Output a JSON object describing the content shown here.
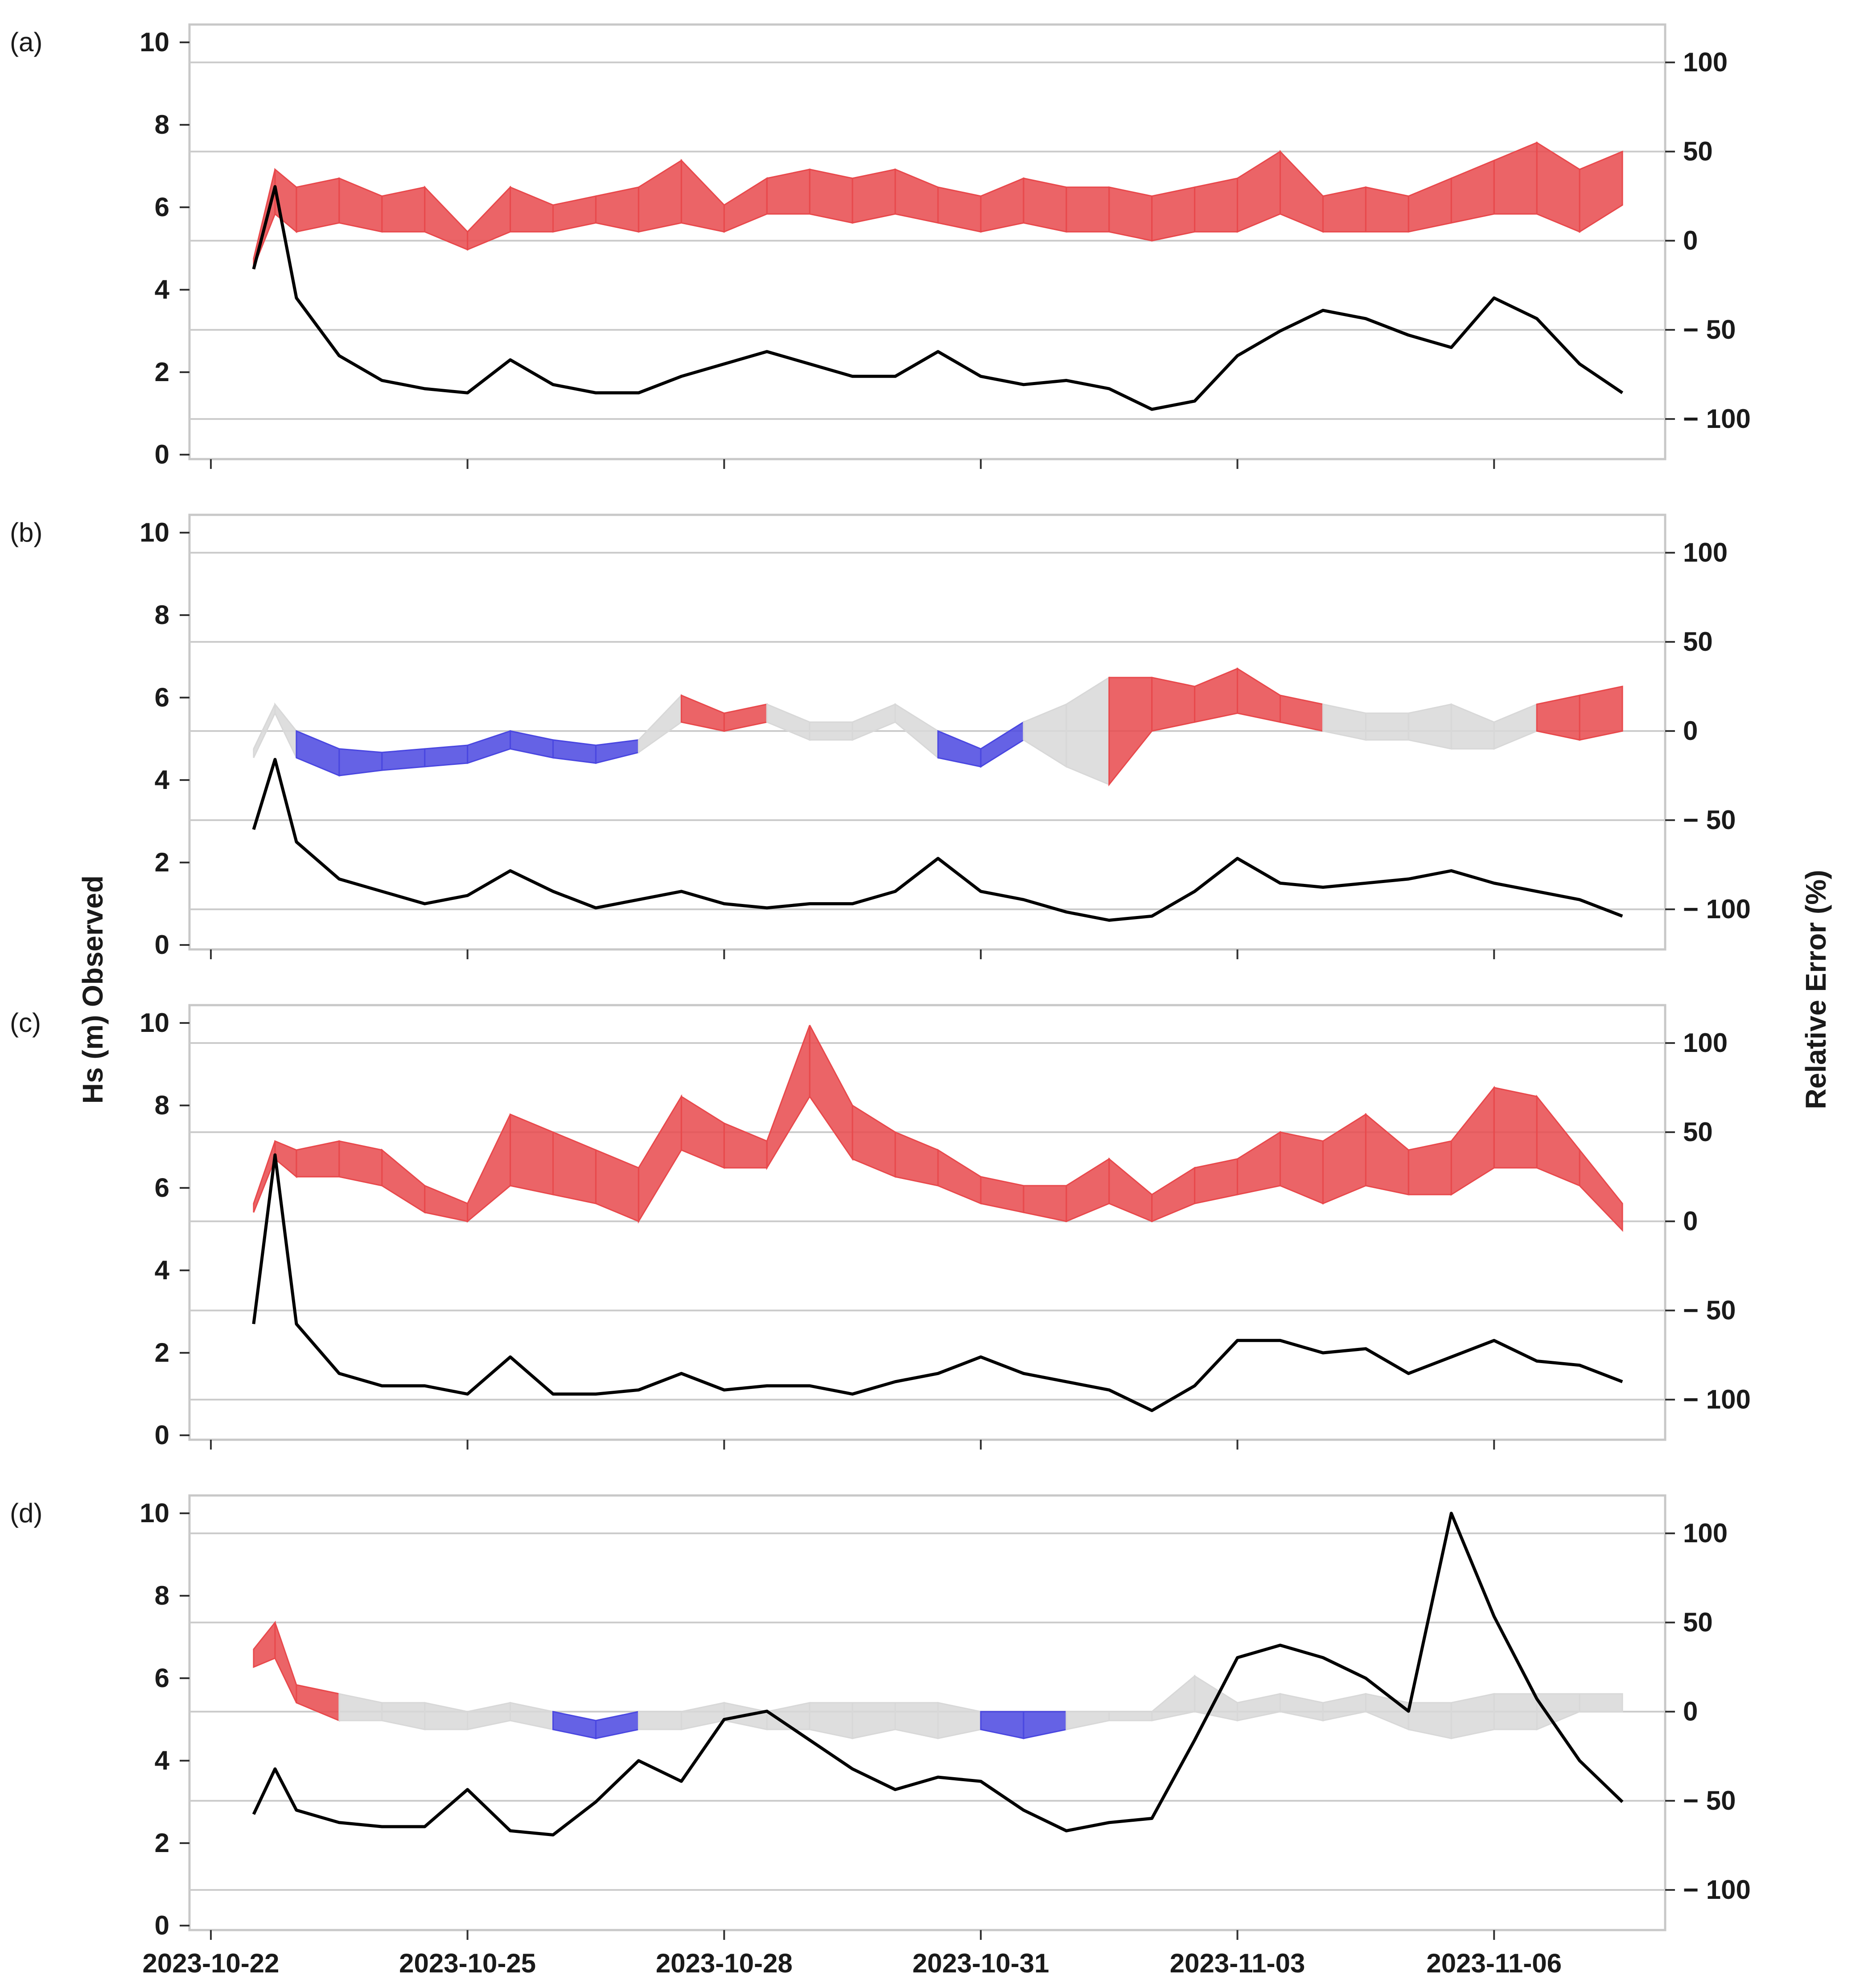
{
  "colors": {
    "observed_line": "#000000",
    "error_positive": "#e8494c",
    "error_negative": "#4a47e0",
    "error_neutral": "#d8d8d8",
    "gridline": "#cccccc",
    "frame": "#c8c8c8"
  },
  "axes": {
    "left_title": "Hs (m) Observed",
    "right_title": "Relative Error (%)",
    "left_ticks": [
      "0",
      "2",
      "4",
      "6",
      "8",
      "10"
    ],
    "right_ticks": [
      "100",
      "50",
      "0",
      "− 50",
      "− 100"
    ],
    "x_ticks": [
      "2023-10-22",
      "2023-10-25",
      "2023-10-28",
      "2023-10-31",
      "2023-11-03",
      "2023-11-06"
    ]
  },
  "chart_data": [
    {
      "type": "line",
      "panel": "(a)",
      "xlabel": "",
      "ylabel": "Hs (m) Observed",
      "y2label": "Relative Error (%)",
      "x": [
        "2023-10-22 12:00",
        "2023-10-22 18:00",
        "2023-10-23 00:00",
        "2023-10-23 12:00",
        "2023-10-24 00:00",
        "2023-10-24 12:00",
        "2023-10-25 00:00",
        "2023-10-25 12:00",
        "2023-10-26 00:00",
        "2023-10-26 12:00",
        "2023-10-27 00:00",
        "2023-10-27 12:00",
        "2023-10-28 00:00",
        "2023-10-28 12:00",
        "2023-10-29 00:00",
        "2023-10-29 12:00",
        "2023-10-30 00:00",
        "2023-10-30 12:00",
        "2023-10-31 00:00",
        "2023-10-31 12:00",
        "2023-11-01 00:00",
        "2023-11-01 12:00",
        "2023-11-02 00:00",
        "2023-11-02 12:00",
        "2023-11-03 00:00",
        "2023-11-03 12:00",
        "2023-11-04 00:00",
        "2023-11-04 12:00",
        "2023-11-05 00:00",
        "2023-11-05 12:00",
        "2023-11-06 00:00",
        "2023-11-06 12:00",
        "2023-11-07 00:00",
        "2023-11-07 12:00"
      ],
      "series": [
        {
          "name": "Hs observed",
          "axis": "left",
          "values": [
            4.5,
            6.5,
            3.8,
            2.4,
            1.8,
            1.6,
            1.5,
            2.3,
            1.7,
            1.5,
            1.5,
            1.9,
            2.2,
            2.5,
            2.2,
            1.9,
            1.9,
            2.5,
            1.9,
            1.7,
            1.8,
            1.6,
            1.1,
            1.3,
            2.4,
            3.0,
            3.5,
            3.3,
            2.9,
            2.6,
            3.8,
            3.3,
            2.2,
            1.5
          ]
        },
        {
          "name": "Relative error upper",
          "axis": "right",
          "values": [
            -10,
            40,
            30,
            35,
            25,
            30,
            5,
            30,
            20,
            25,
            30,
            45,
            20,
            35,
            40,
            35,
            40,
            30,
            25,
            35,
            30,
            30,
            25,
            30,
            35,
            50,
            25,
            30,
            25,
            35,
            45,
            55,
            40,
            50
          ]
        },
        {
          "name": "Relative error lower",
          "axis": "right",
          "values": [
            -15,
            15,
            5,
            10,
            5,
            5,
            -5,
            5,
            5,
            10,
            5,
            10,
            5,
            15,
            15,
            10,
            15,
            10,
            5,
            10,
            5,
            5,
            0,
            5,
            5,
            15,
            5,
            5,
            5,
            10,
            15,
            15,
            5,
            20
          ]
        }
      ],
      "xlim": [
        "2023-10-21 18:00",
        "2023-11-08 00:00"
      ],
      "ylim": [
        0,
        10.5
      ],
      "y2lim": [
        -120,
        120
      ]
    },
    {
      "type": "line",
      "panel": "(b)",
      "xlabel": "",
      "ylabel": "Hs (m) Observed",
      "y2label": "Relative Error (%)",
      "x": [
        "2023-10-22 12:00",
        "2023-10-22 18:00",
        "2023-10-23 00:00",
        "2023-10-23 12:00",
        "2023-10-24 00:00",
        "2023-10-24 12:00",
        "2023-10-25 00:00",
        "2023-10-25 12:00",
        "2023-10-26 00:00",
        "2023-10-26 12:00",
        "2023-10-27 00:00",
        "2023-10-27 12:00",
        "2023-10-28 00:00",
        "2023-10-28 12:00",
        "2023-10-29 00:00",
        "2023-10-29 12:00",
        "2023-10-30 00:00",
        "2023-10-30 12:00",
        "2023-10-31 00:00",
        "2023-10-31 12:00",
        "2023-11-01 00:00",
        "2023-11-01 12:00",
        "2023-11-02 00:00",
        "2023-11-02 12:00",
        "2023-11-03 00:00",
        "2023-11-03 12:00",
        "2023-11-04 00:00",
        "2023-11-04 12:00",
        "2023-11-05 00:00",
        "2023-11-05 12:00",
        "2023-11-06 00:00",
        "2023-11-06 12:00",
        "2023-11-07 00:00",
        "2023-11-07 12:00"
      ],
      "series": [
        {
          "name": "Hs observed",
          "axis": "left",
          "values": [
            2.8,
            4.5,
            2.5,
            1.6,
            1.3,
            1.0,
            1.2,
            1.8,
            1.3,
            0.9,
            1.1,
            1.3,
            1.0,
            0.9,
            1.0,
            1.0,
            1.3,
            2.1,
            1.3,
            1.1,
            0.8,
            0.6,
            0.7,
            1.3,
            2.1,
            1.5,
            1.4,
            1.5,
            1.6,
            1.8,
            1.5,
            1.3,
            1.1,
            0.7
          ]
        },
        {
          "name": "Relative error upper",
          "axis": "right",
          "values": [
            -10,
            15,
            0,
            -10,
            -12,
            -10,
            -8,
            0,
            -5,
            -8,
            -5,
            20,
            10,
            15,
            5,
            5,
            15,
            0,
            -10,
            5,
            15,
            30,
            30,
            25,
            35,
            20,
            15,
            10,
            10,
            15,
            5,
            15,
            20,
            25
          ]
        },
        {
          "name": "Relative error lower",
          "axis": "right",
          "values": [
            -15,
            10,
            -15,
            -25,
            -22,
            -20,
            -18,
            -10,
            -15,
            -18,
            -12,
            5,
            0,
            5,
            -5,
            -5,
            5,
            -15,
            -20,
            -5,
            -20,
            -30,
            0,
            5,
            10,
            5,
            0,
            -5,
            -5,
            -10,
            -10,
            0,
            -5,
            0
          ]
        }
      ],
      "xlim": [
        "2023-10-21 18:00",
        "2023-11-08 00:00"
      ],
      "ylim": [
        0,
        10.5
      ],
      "y2lim": [
        -120,
        120
      ]
    },
    {
      "type": "line",
      "panel": "(c)",
      "xlabel": "",
      "ylabel": "Hs (m) Observed",
      "y2label": "Relative Error (%)",
      "x": [
        "2023-10-22 12:00",
        "2023-10-22 18:00",
        "2023-10-23 00:00",
        "2023-10-23 12:00",
        "2023-10-24 00:00",
        "2023-10-24 12:00",
        "2023-10-25 00:00",
        "2023-10-25 12:00",
        "2023-10-26 00:00",
        "2023-10-26 12:00",
        "2023-10-27 00:00",
        "2023-10-27 12:00",
        "2023-10-28 00:00",
        "2023-10-28 12:00",
        "2023-10-29 00:00",
        "2023-10-29 12:00",
        "2023-10-30 00:00",
        "2023-10-30 12:00",
        "2023-10-31 00:00",
        "2023-10-31 12:00",
        "2023-11-01 00:00",
        "2023-11-01 12:00",
        "2023-11-02 00:00",
        "2023-11-02 12:00",
        "2023-11-03 00:00",
        "2023-11-03 12:00",
        "2023-11-04 00:00",
        "2023-11-04 12:00",
        "2023-11-05 00:00",
        "2023-11-05 12:00",
        "2023-11-06 00:00",
        "2023-11-06 12:00",
        "2023-11-07 00:00",
        "2023-11-07 12:00"
      ],
      "series": [
        {
          "name": "Hs observed",
          "axis": "left",
          "values": [
            2.7,
            6.8,
            2.7,
            1.5,
            1.2,
            1.2,
            1.0,
            1.9,
            1.0,
            1.0,
            1.1,
            1.5,
            1.1,
            1.2,
            1.2,
            1.0,
            1.3,
            1.5,
            1.9,
            1.5,
            1.3,
            1.1,
            0.6,
            1.2,
            2.3,
            2.3,
            2.0,
            2.1,
            1.5,
            1.9,
            2.3,
            1.8,
            1.7,
            1.3
          ]
        },
        {
          "name": "Relative error upper",
          "axis": "right",
          "values": [
            10,
            45,
            40,
            45,
            40,
            20,
            10,
            60,
            50,
            40,
            30,
            70,
            55,
            45,
            110,
            65,
            50,
            40,
            25,
            20,
            20,
            35,
            15,
            30,
            35,
            50,
            45,
            60,
            40,
            45,
            75,
            70,
            40,
            10
          ]
        },
        {
          "name": "Relative error lower",
          "axis": "right",
          "values": [
            5,
            35,
            25,
            25,
            20,
            5,
            0,
            20,
            15,
            10,
            0,
            40,
            30,
            30,
            70,
            35,
            25,
            20,
            10,
            5,
            0,
            10,
            0,
            10,
            15,
            20,
            10,
            20,
            15,
            15,
            30,
            30,
            20,
            -5
          ]
        }
      ],
      "xlim": [
        "2023-10-21 18:00",
        "2023-11-08 00:00"
      ],
      "ylim": [
        0,
        10.5
      ],
      "y2lim": [
        -120,
        120
      ]
    },
    {
      "type": "line",
      "panel": "(d)",
      "xlabel": "",
      "ylabel": "Hs (m) Observed",
      "y2label": "Relative Error (%)",
      "x": [
        "2023-10-22 12:00",
        "2023-10-22 18:00",
        "2023-10-23 00:00",
        "2023-10-23 12:00",
        "2023-10-24 00:00",
        "2023-10-24 12:00",
        "2023-10-25 00:00",
        "2023-10-25 12:00",
        "2023-10-26 00:00",
        "2023-10-26 12:00",
        "2023-10-27 00:00",
        "2023-10-27 12:00",
        "2023-10-28 00:00",
        "2023-10-28 12:00",
        "2023-10-29 00:00",
        "2023-10-29 12:00",
        "2023-10-30 00:00",
        "2023-10-30 12:00",
        "2023-10-31 00:00",
        "2023-10-31 12:00",
        "2023-11-01 00:00",
        "2023-11-01 12:00",
        "2023-11-02 00:00",
        "2023-11-02 12:00",
        "2023-11-03 00:00",
        "2023-11-03 12:00",
        "2023-11-04 00:00",
        "2023-11-04 12:00",
        "2023-11-05 00:00",
        "2023-11-05 12:00",
        "2023-11-06 00:00",
        "2023-11-06 12:00",
        "2023-11-07 00:00",
        "2023-11-07 12:00"
      ],
      "series": [
        {
          "name": "Hs observed",
          "axis": "left",
          "values": [
            2.7,
            3.8,
            2.8,
            2.5,
            2.4,
            2.4,
            3.3,
            2.3,
            2.2,
            3.0,
            4.0,
            3.5,
            5.0,
            5.2,
            4.5,
            3.8,
            3.3,
            3.6,
            3.5,
            2.8,
            2.3,
            2.5,
            2.6,
            4.5,
            6.5,
            6.8,
            6.5,
            6.0,
            5.2,
            10.0,
            7.5,
            5.5,
            4.0,
            3.0
          ]
        },
        {
          "name": "Relative error upper",
          "axis": "right",
          "values": [
            35,
            50,
            15,
            10,
            5,
            5,
            0,
            5,
            0,
            -5,
            0,
            0,
            5,
            0,
            5,
            5,
            5,
            5,
            0,
            0,
            0,
            0,
            0,
            20,
            5,
            10,
            5,
            10,
            5,
            5,
            10,
            10,
            10,
            10
          ]
        },
        {
          "name": "Relative error lower",
          "axis": "right",
          "values": [
            25,
            30,
            5,
            -5,
            -5,
            -10,
            -10,
            -5,
            -10,
            -15,
            -10,
            -10,
            -5,
            -10,
            -10,
            -15,
            -10,
            -15,
            -10,
            -15,
            -10,
            -5,
            -5,
            0,
            -5,
            0,
            -5,
            0,
            -10,
            -15,
            -10,
            -10,
            0,
            0
          ]
        }
      ],
      "xlim": [
        "2023-10-21 18:00",
        "2023-11-08 00:00"
      ],
      "ylim": [
        0,
        10.5
      ],
      "y2lim": [
        -120,
        120
      ]
    }
  ]
}
